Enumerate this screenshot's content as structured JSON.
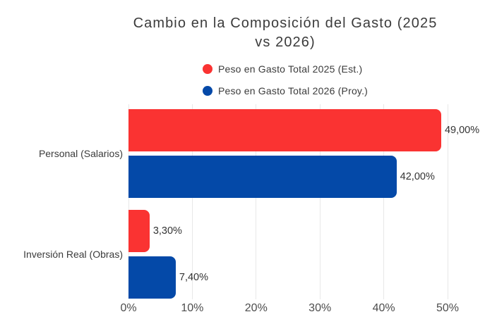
{
  "title": {
    "line1": "Cambio en la Composición del Gasto (2025",
    "line2": "vs 2026)"
  },
  "chart_data": {
    "type": "bar",
    "orientation": "horizontal",
    "title": "Cambio en la Composición del Gasto (2025 vs 2026)",
    "categories": [
      "Personal (Salarios)",
      "Inversión Real (Obras)"
    ],
    "series": [
      {
        "name": "Peso en Gasto Total 2025 (Est.)",
        "color": "#fa3332",
        "values": [
          49.0,
          3.3
        ],
        "value_labels": [
          "49,00%",
          "3,30%"
        ]
      },
      {
        "name": "Peso en Gasto Total 2026 (Proy.)",
        "color": "#0449a8",
        "values": [
          42.0,
          7.4
        ],
        "value_labels": [
          "42,00%",
          "7,40%"
        ]
      }
    ],
    "xlim": [
      0,
      50
    ],
    "x_ticks": [
      {
        "value": 0,
        "label": "0%"
      },
      {
        "value": 10,
        "label": "10%"
      },
      {
        "value": 20,
        "label": "20%"
      },
      {
        "value": 30,
        "label": "30%"
      },
      {
        "value": 40,
        "label": "40%"
      },
      {
        "value": 50,
        "label": "50%"
      }
    ],
    "legend_position": "top",
    "grid": "vertical",
    "gridline_color": "#e8e8e8"
  }
}
